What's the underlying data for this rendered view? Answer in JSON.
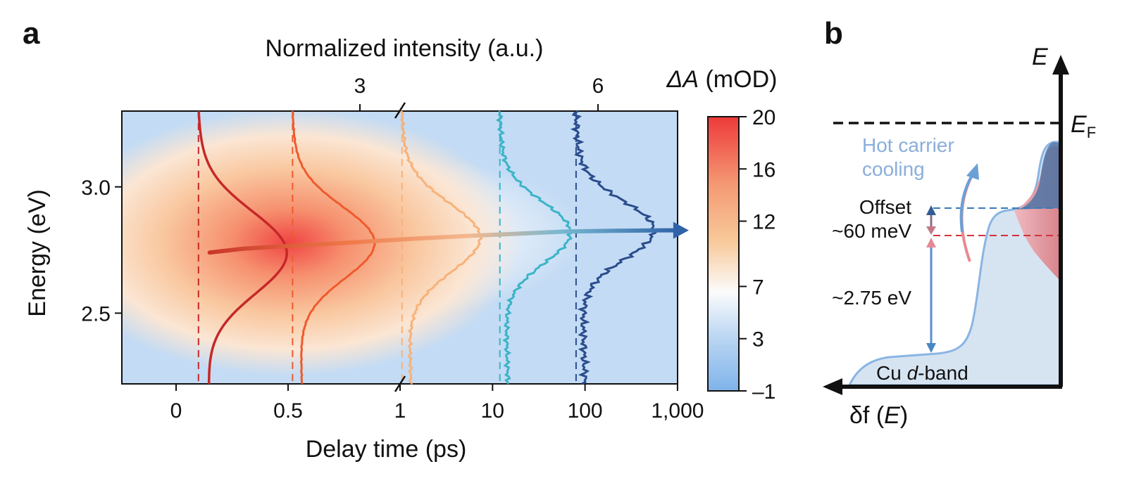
{
  "panel_a": {
    "letter": "a",
    "chart_data": {
      "type": "heatmap",
      "xlabel": "Delay time (ps)",
      "ylabel": "Energy (eV)",
      "top_axis_label": "Normalized intensity (a.u.)",
      "colorbar_label_symbol": "ΔA",
      "colorbar_label_unit": " (mOD)",
      "x_scale": "piecewise: linear -0.3 to 1, log 1 to 1000",
      "x_ticks": [
        "0",
        "0.5",
        "1",
        "10",
        "100",
        "1,000"
      ],
      "x_tick_values": [
        0,
        0.5,
        1,
        10,
        100,
        1000
      ],
      "y_ticks": [
        "3.0",
        "2.5"
      ],
      "y_tick_values": [
        3.0,
        2.5
      ],
      "ylim": [
        2.22,
        3.3
      ],
      "top_ticks": [
        "3",
        "6"
      ],
      "top_tick_values": [
        3,
        6
      ],
      "colorbar_ticks": [
        "20",
        "16",
        "12",
        "7",
        "3",
        "–1"
      ],
      "colorbar_values": [
        20,
        16,
        12,
        7,
        3,
        -1
      ],
      "slice_delays_ps": [
        0.1,
        0.52,
        1.05,
        12,
        80
      ],
      "slice_colors": [
        "#c62828",
        "#ef5a2e",
        "#f7b27a",
        "#3bb4c8",
        "#2a4c8c"
      ],
      "peak_energy_eV": [
        2.74,
        2.78,
        2.8,
        2.82,
        2.83
      ],
      "peak_trace": {
        "delay_ps": [
          0.15,
          0.3,
          0.48,
          0.7,
          0.88,
          1.5,
          5,
          20,
          60,
          200,
          700,
          1000
        ],
        "energy_eV": [
          2.74,
          2.755,
          2.765,
          2.775,
          2.785,
          2.795,
          2.805,
          2.815,
          2.823,
          2.826,
          2.828,
          2.828
        ]
      }
    }
  },
  "panel_b": {
    "letter": "b",
    "e_axis": "E",
    "ef_symbol": "E",
    "ef_subscript": "F",
    "hot_carrier_line1": "Hot carrier",
    "hot_carrier_line2": "cooling",
    "offset_label": "Offset",
    "offset_value": "~60 meV",
    "gap_label": "~2.75 eV",
    "dband_prefix": "Cu ",
    "dband_italic": "d",
    "dband_suffix": "-band",
    "x_axis_pre": "δf (",
    "x_axis_italic": "E",
    "x_axis_post": ")"
  }
}
